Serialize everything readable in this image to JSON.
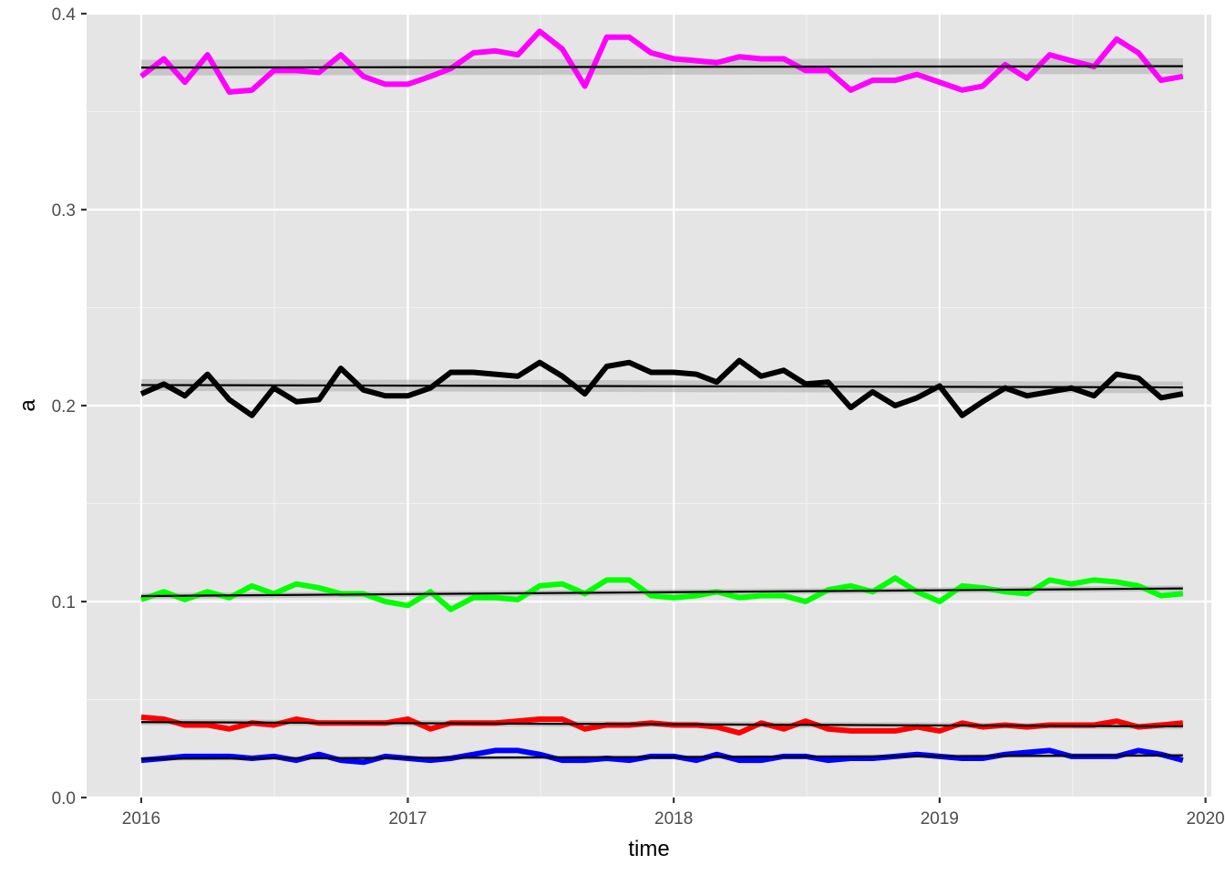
{
  "chart_data": {
    "type": "line",
    "xlabel": "time",
    "ylabel": "a",
    "xlim": [
      "2015-10-18",
      "2020-01-09"
    ],
    "ylim": [
      0.0,
      0.4
    ],
    "x_ticks": [
      "2016",
      "2017",
      "2018",
      "2019",
      "2020"
    ],
    "y_ticks": [
      "0.0",
      "0.1",
      "0.2",
      "0.3",
      "0.4"
    ],
    "grid": true,
    "legend": "none",
    "background": "#e5e5e5",
    "x": [
      "2016-01",
      "2016-02",
      "2016-03",
      "2016-04",
      "2016-05",
      "2016-06",
      "2016-07",
      "2016-08",
      "2016-09",
      "2016-10",
      "2016-11",
      "2016-12",
      "2017-01",
      "2017-02",
      "2017-03",
      "2017-04",
      "2017-05",
      "2017-06",
      "2017-07",
      "2017-08",
      "2017-09",
      "2017-10",
      "2017-11",
      "2017-12",
      "2018-01",
      "2018-02",
      "2018-03",
      "2018-04",
      "2018-05",
      "2018-06",
      "2018-07",
      "2018-08",
      "2018-09",
      "2018-10",
      "2018-11",
      "2018-12",
      "2019-01",
      "2019-02",
      "2019-03",
      "2019-04",
      "2019-05",
      "2019-06",
      "2019-07",
      "2019-08",
      "2019-09",
      "2019-10",
      "2019-11",
      "2019-12"
    ],
    "series": [
      {
        "color": "#ff00ff",
        "values": [
          0.368,
          0.377,
          0.365,
          0.379,
          0.36,
          0.361,
          0.371,
          0.371,
          0.37,
          0.379,
          0.368,
          0.364,
          0.364,
          0.368,
          0.372,
          0.38,
          0.381,
          0.379,
          0.391,
          0.382,
          0.363,
          0.388,
          0.388,
          0.38,
          0.377,
          0.376,
          0.375,
          0.378,
          0.377,
          0.377,
          0.371,
          0.371,
          0.361,
          0.366,
          0.366,
          0.369,
          0.365,
          0.361,
          0.363,
          0.374,
          0.367,
          0.379,
          0.376,
          0.373,
          0.387,
          0.38,
          0.366,
          0.368
        ],
        "trend": [
          0.3725,
          0.3732
        ],
        "band": 0.004
      },
      {
        "color": "#000000",
        "values": [
          0.206,
          0.211,
          0.205,
          0.216,
          0.203,
          0.195,
          0.209,
          0.202,
          0.203,
          0.219,
          0.208,
          0.205,
          0.205,
          0.209,
          0.217,
          0.217,
          0.216,
          0.215,
          0.222,
          0.215,
          0.206,
          0.22,
          0.222,
          0.217,
          0.217,
          0.216,
          0.212,
          0.223,
          0.215,
          0.218,
          0.211,
          0.212,
          0.199,
          0.207,
          0.2,
          0.204,
          0.21,
          0.195,
          0.202,
          0.209,
          0.205,
          0.207,
          0.209,
          0.205,
          0.216,
          0.214,
          0.204,
          0.206
        ],
        "trend": [
          0.2105,
          0.2093
        ],
        "band": 0.003
      },
      {
        "color": "#00ff00",
        "values": [
          0.101,
          0.105,
          0.101,
          0.105,
          0.102,
          0.108,
          0.104,
          0.109,
          0.107,
          0.104,
          0.104,
          0.1,
          0.098,
          0.105,
          0.096,
          0.102,
          0.102,
          0.101,
          0.108,
          0.109,
          0.104,
          0.111,
          0.111,
          0.103,
          0.102,
          0.103,
          0.105,
          0.102,
          0.103,
          0.103,
          0.1,
          0.106,
          0.108,
          0.105,
          0.112,
          0.105,
          0.1,
          0.108,
          0.107,
          0.105,
          0.104,
          0.111,
          0.109,
          0.111,
          0.11,
          0.108,
          0.103,
          0.104
        ],
        "trend": [
          0.1028,
          0.1067
        ],
        "band": 0.0015
      },
      {
        "color": "#ff0000",
        "values": [
          0.041,
          0.04,
          0.037,
          0.037,
          0.035,
          0.038,
          0.037,
          0.04,
          0.038,
          0.038,
          0.038,
          0.038,
          0.04,
          0.035,
          0.038,
          0.038,
          0.038,
          0.039,
          0.04,
          0.04,
          0.035,
          0.037,
          0.037,
          0.038,
          0.037,
          0.037,
          0.036,
          0.033,
          0.038,
          0.035,
          0.039,
          0.035,
          0.034,
          0.034,
          0.034,
          0.036,
          0.034,
          0.038,
          0.036,
          0.037,
          0.036,
          0.037,
          0.037,
          0.037,
          0.039,
          0.036,
          0.037,
          0.038
        ],
        "trend": [
          0.0385,
          0.0363
        ],
        "band": 0.0015
      },
      {
        "color": "#0000ff",
        "values": [
          0.019,
          0.02,
          0.021,
          0.021,
          0.021,
          0.02,
          0.021,
          0.019,
          0.022,
          0.019,
          0.018,
          0.021,
          0.02,
          0.019,
          0.02,
          0.022,
          0.024,
          0.024,
          0.022,
          0.019,
          0.019,
          0.02,
          0.019,
          0.021,
          0.021,
          0.019,
          0.022,
          0.019,
          0.019,
          0.021,
          0.021,
          0.019,
          0.02,
          0.02,
          0.021,
          0.022,
          0.021,
          0.02,
          0.02,
          0.022,
          0.023,
          0.024,
          0.021,
          0.021,
          0.021,
          0.024,
          0.022,
          0.019
        ],
        "trend": [
          0.0198,
          0.0215
        ],
        "band": 0.001
      }
    ]
  }
}
